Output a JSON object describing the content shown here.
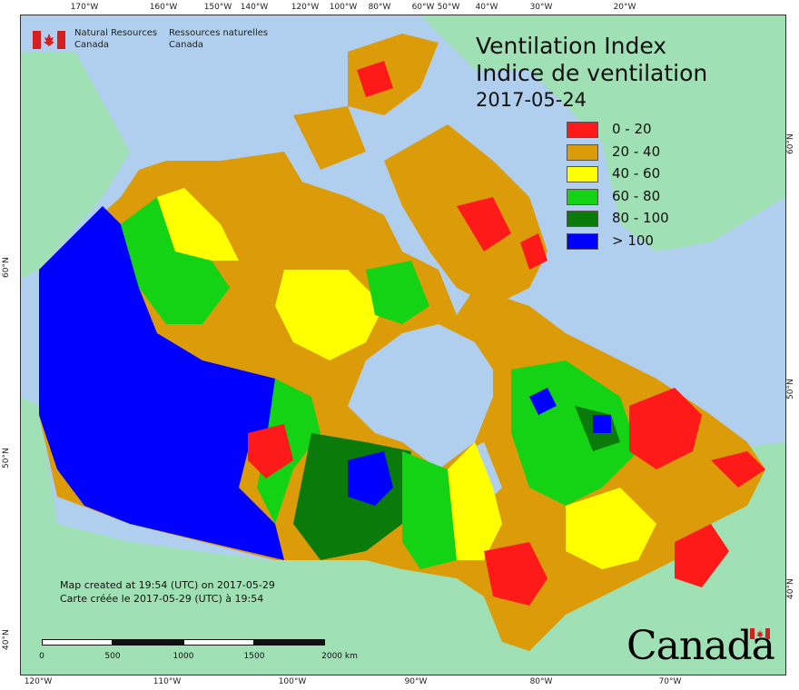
{
  "agency": {
    "english_line1": "Natural Resources",
    "english_line2": "Canada",
    "french_line1": "Ressources naturelles",
    "french_line2": "Canada"
  },
  "title": {
    "english": "Ventilation Index",
    "french": "Indice de ventilation",
    "date": "2017-05-24"
  },
  "legend": [
    {
      "label": "0 - 20",
      "color": "#ff1a1a"
    },
    {
      "label": "20 - 40",
      "color": "#dc9c0a"
    },
    {
      "label": "40 - 60",
      "color": "#ffff00"
    },
    {
      "label": "60 - 80",
      "color": "#14d214"
    },
    {
      "label": "80 - 100",
      "color": "#0a7a0a"
    },
    {
      "label": "> 100",
      "color": "#0000ff"
    }
  ],
  "credits": {
    "line1": "Map created at 19:54 (UTC) on 2017-05-29",
    "line2": "Carte créée le 2017-05-29 (UTC) à 19:54"
  },
  "scale": {
    "labels": [
      "0",
      "500",
      "1000",
      "1500",
      "2000  km"
    ]
  },
  "graticule": {
    "top": [
      "170°W",
      "160°W",
      "150°W",
      "140°W",
      "120°W",
      "100°W",
      "80°W",
      "60°W",
      "50°W",
      "40°W",
      "30°W",
      "20°W"
    ],
    "bottom": [
      "120°W",
      "110°W",
      "100°W",
      "90°W",
      "80°W",
      "70°W"
    ],
    "left": [
      "60°N",
      "50°N",
      "40°N"
    ],
    "right": [
      "60°N",
      "50°N",
      "40°N"
    ]
  },
  "wordmark": "Canada",
  "colors": {
    "ocean": "#b0cfee",
    "land": "#9fe0b4"
  }
}
